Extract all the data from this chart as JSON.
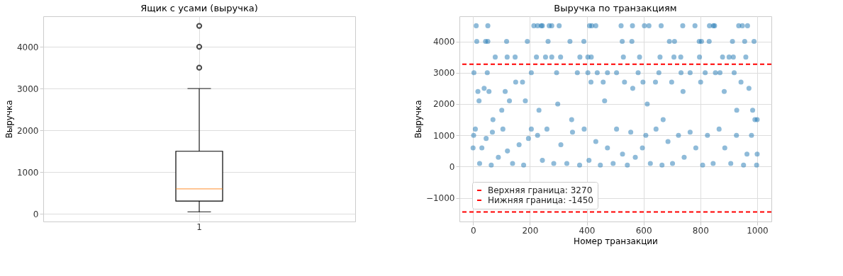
{
  "chart_data": [
    {
      "type": "box",
      "title": "Ящик с усами (выручка)",
      "ylabel": "Выручка",
      "categories": [
        "1"
      ],
      "boxes": [
        {
          "low": 50,
          "q1": 310,
          "median": 600,
          "q3": 1500,
          "high": 3000,
          "outliers": [
            3500,
            4000,
            4500
          ]
        }
      ],
      "color": "#000000",
      "ylim": [
        -180,
        4730
      ],
      "yticks": [
        0,
        1000,
        2000,
        3000,
        4000
      ],
      "grid": true
    },
    {
      "type": "scatter",
      "title": "Выручка по транзакциям",
      "xlabel": "Номер транзакции",
      "ylabel": "Выручка",
      "color": "#1f77b4",
      "marker": "circle",
      "x": [
        11,
        52,
        214,
        227,
        240,
        244,
        268,
        277,
        303,
        410,
        418,
        432,
        521,
        561,
        603,
        619,
        662,
        738,
        781,
        832,
        846,
        850,
        935,
        948,
        966,
        13,
        44,
        52,
        118,
        191,
        264,
        341,
        390,
        525,
        559,
        691,
        709,
        796,
        804,
        831,
        913,
        956,
        989,
        78,
        120,
        148,
        223,
        255,
        277,
        308,
        376,
        404,
        416,
        529,
        586,
        658,
        707,
        731,
        797,
        878,
        901,
        916,
        960,
        3,
        17,
        21,
        39,
        50,
        56,
        70,
        101,
        113,
        128,
        150,
        174,
        184,
        205,
        232,
        294,
        298,
        347,
        367,
        404,
        415,
        437,
        458,
        463,
        473,
        505,
        533,
        562,
        581,
        598,
        613,
        642,
        654,
        669,
        699,
        732,
        739,
        764,
        801,
        817,
        853,
        869,
        884,
        919,
        928,
        943,
        971,
        1000,
        984,
        992,
        0,
        2,
        8,
        23,
        31,
        46,
        64,
        68,
        89,
        105,
        121,
        139,
        162,
        178,
        195,
        205,
        227,
        244,
        260,
        284,
        309,
        330,
        350,
        375,
        391,
        408,
        432,
        448,
        473,
        493,
        505,
        526,
        543,
        555,
        571,
        596,
        608,
        624,
        644,
        665,
        686,
        702,
        723,
        743,
        764,
        784,
        808,
        825,
        845,
        866,
        886,
        907,
        927,
        952,
        964,
        980,
        1000,
        998
      ],
      "values": [
        4500,
        4500,
        4500,
        4500,
        4500,
        4500,
        4500,
        4500,
        4500,
        4500,
        4500,
        4500,
        4500,
        4500,
        4500,
        4500,
        4500,
        4500,
        4500,
        4500,
        4500,
        4500,
        4500,
        4500,
        4500,
        4000,
        4000,
        4000,
        4000,
        4000,
        4000,
        4000,
        4000,
        4000,
        4000,
        4000,
        4000,
        4000,
        4000,
        4000,
        4000,
        4000,
        4000,
        3500,
        3500,
        3500,
        3500,
        3500,
        3500,
        3500,
        3500,
        3500,
        3500,
        3500,
        3500,
        3500,
        3500,
        3500,
        3500,
        3500,
        3500,
        3500,
        3500,
        3000,
        2400,
        2100,
        2500,
        3000,
        2400,
        1500,
        1800,
        2400,
        2100,
        2700,
        2700,
        2100,
        3000,
        1800,
        3000,
        2000,
        1500,
        3000,
        3000,
        2700,
        3000,
        2700,
        2100,
        3000,
        3000,
        2700,
        2500,
        3000,
        2700,
        2000,
        2700,
        3000,
        1500,
        2700,
        3000,
        2400,
        3000,
        2700,
        3000,
        3000,
        3000,
        2400,
        3000,
        1800,
        2700,
        2500,
        1500,
        1800,
        1500,
        600,
        1000,
        1200,
        100,
        600,
        900,
        50,
        1100,
        300,
        1200,
        500,
        100,
        700,
        50,
        900,
        1200,
        1000,
        200,
        1200,
        100,
        700,
        100,
        1100,
        50,
        1200,
        200,
        800,
        50,
        600,
        100,
        1200,
        400,
        50,
        1100,
        300,
        600,
        1000,
        100,
        1200,
        50,
        800,
        100,
        1000,
        300,
        1100,
        600,
        50,
        1000,
        100,
        1200,
        600,
        100,
        1000,
        50,
        400,
        1000,
        400,
        50
      ],
      "xlim": [
        -48,
        1050
      ],
      "xticks": [
        0,
        200,
        400,
        600,
        800,
        1000
      ],
      "ylim": [
        -1753,
        4803
      ],
      "yticks": [
        {
          "value": -1000,
          "label": "−1000"
        },
        0,
        1000,
        2000,
        3000,
        4000
      ],
      "ref_lines": [
        {
          "axis": "y",
          "value": 3270,
          "label": "Верхняя граница: 3270",
          "color": "#ff0000",
          "line_style": "dashed"
        },
        {
          "axis": "y",
          "value": -1450,
          "label": "Нижняя граница: -1450",
          "color": "#ff0000",
          "line_style": "dashed"
        }
      ],
      "legend": "bottom left",
      "grid": true
    }
  ]
}
